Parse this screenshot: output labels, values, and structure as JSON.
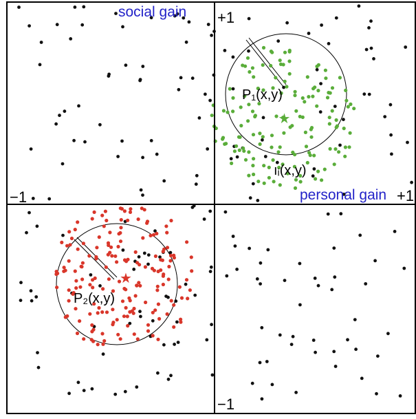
{
  "labels": {
    "social_axis": "social gain",
    "personal_axis": "personal gain",
    "y_top": "+1",
    "y_bottom": "−1",
    "x_left": "−1",
    "x_right": "+1",
    "agent_label": "ıᵢ(x,y)",
    "p1_label": "P₁(x,y)",
    "p2_label": "P₂(x,y)"
  },
  "colors": {
    "text_accent": "#2323c8",
    "ink": "#000000",
    "agents": "#111111",
    "group1": "#5aad3a",
    "group2": "#d9362a",
    "circle": "#000000"
  },
  "groups": [
    {
      "id": "P1",
      "label_key": "p1_label",
      "color_key": "group1",
      "center": [
        0.34,
        0.42
      ],
      "radius": 0.39,
      "members": 150
    },
    {
      "id": "P2",
      "label_key": "p2_label",
      "color_key": "group2",
      "center": [
        -0.44,
        -0.36
      ],
      "radius": 0.39,
      "members": 180
    }
  ],
  "agents_count": 210
}
